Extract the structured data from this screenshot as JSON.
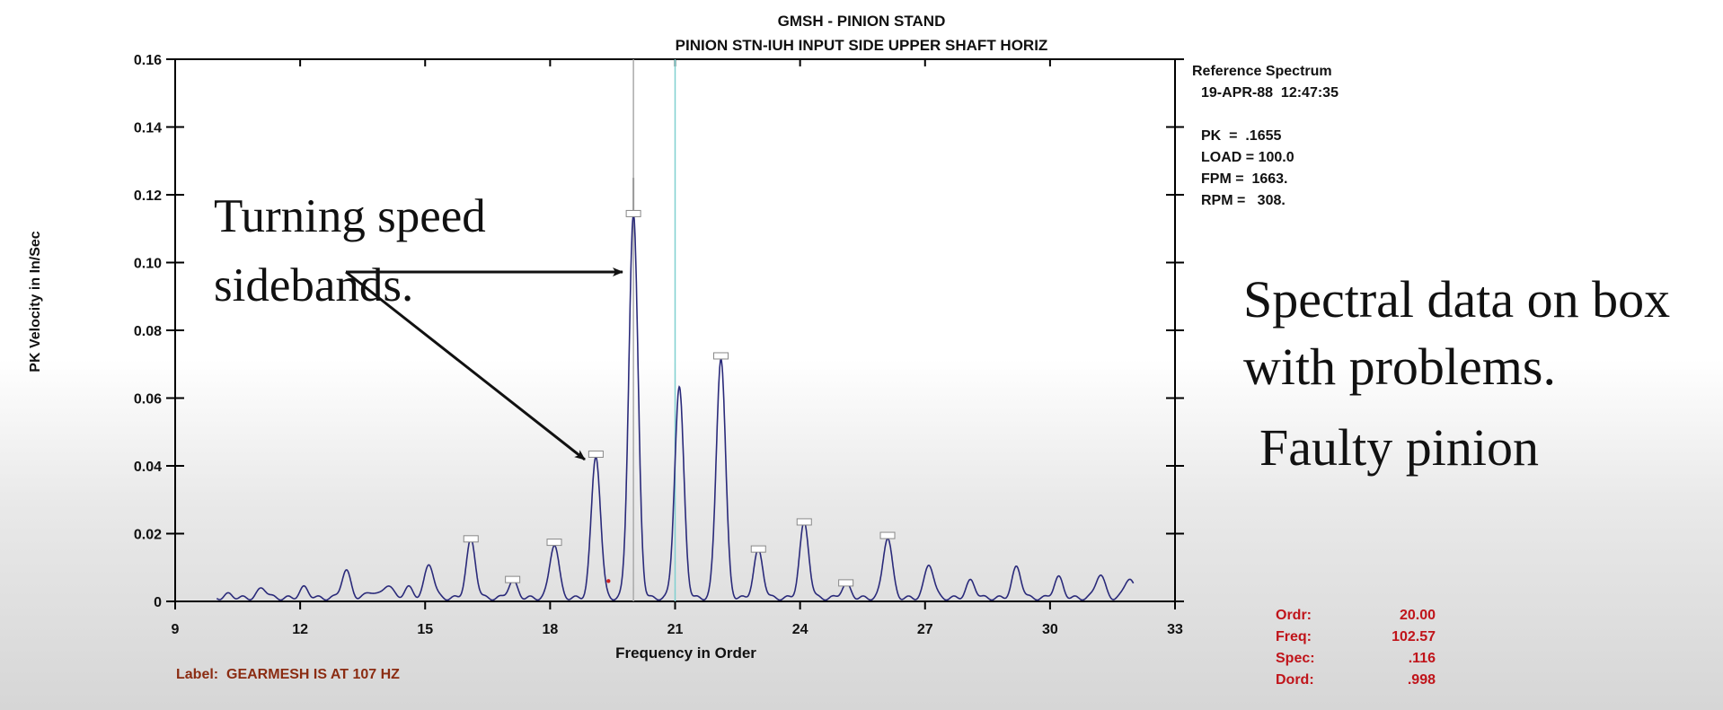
{
  "title": "GMSH - PINION STAND",
  "subtitle": "PINION STN-IUH   INPUT SIDE UPPER SHAFT HORIZ",
  "reference": {
    "heading": "Reference Spectrum",
    "datetime": "19-APR-88  12:47:35",
    "pk": "PK  =  .1655",
    "load": "LOAD = 100.0",
    "fpm": "FPM =  1663.",
    "rpm": "RPM =   308."
  },
  "annotations": {
    "turning_speed_line1": "Turning speed",
    "turning_speed_line2": "sidebands.",
    "spectral_line1": "Spectral data on box",
    "spectral_line2": "with problems.",
    "faulty": "Faulty pinion"
  },
  "label_text": "Label:  GEARMESH IS AT 107 HZ",
  "cursor": [
    {
      "key": "Ordr:",
      "value": "20.00"
    },
    {
      "key": "Freq:",
      "value": "102.57"
    },
    {
      "key": "Spec:",
      "value": ".116"
    },
    {
      "key": "Dord:",
      "value": ".998"
    }
  ],
  "colors": {
    "spectrum_line": "#2a2a7a",
    "cursor_gray": "#aaaaaa",
    "cursor_cyan": "#80d0d0",
    "label_color": "#8b2c12",
    "cursor_text": "#c0141a"
  },
  "chart_data": {
    "type": "line",
    "xlabel": "Frequency in Order",
    "ylabel": "PK Velocity in In/Sec",
    "xlim": [
      9,
      33
    ],
    "ylim": [
      0,
      0.16
    ],
    "xticks": [
      9,
      12,
      15,
      18,
      21,
      24,
      27,
      30,
      33
    ],
    "xtick_labels": [
      "9",
      "12",
      "15",
      "18",
      "21",
      "24",
      "27",
      "30",
      "33"
    ],
    "yticks": [
      0,
      0.02,
      0.04,
      0.06,
      0.08,
      0.1,
      0.12,
      0.14,
      0.16
    ],
    "ytick_labels": [
      "0",
      "0.02",
      "0.04",
      "0.06",
      "0.08",
      "0.10",
      "0.12",
      "0.14",
      "0.16"
    ],
    "x_start": 10,
    "x_end": 32,
    "baseline": 0.001,
    "peaks": [
      {
        "x": 10.3,
        "y": 0.001
      },
      {
        "x": 11.1,
        "y": 0.003
      },
      {
        "x": 12.1,
        "y": 0.003
      },
      {
        "x": 13.1,
        "y": 0.008
      },
      {
        "x": 13.7,
        "y": 0.002
      },
      {
        "x": 14.1,
        "y": 0.004
      },
      {
        "x": 14.6,
        "y": 0.003
      },
      {
        "x": 15.1,
        "y": 0.01
      },
      {
        "x": 16.1,
        "y": 0.017
      },
      {
        "x": 17.1,
        "y": 0.005
      },
      {
        "x": 18.1,
        "y": 0.016
      },
      {
        "x": 19.1,
        "y": 0.042
      },
      {
        "x": 20.0,
        "y": 0.113
      },
      {
        "x": 21.1,
        "y": 0.062
      },
      {
        "x": 22.1,
        "y": 0.071
      },
      {
        "x": 23.0,
        "y": 0.014
      },
      {
        "x": 24.1,
        "y": 0.022
      },
      {
        "x": 25.1,
        "y": 0.004
      },
      {
        "x": 26.1,
        "y": 0.018
      },
      {
        "x": 27.1,
        "y": 0.01
      },
      {
        "x": 28.1,
        "y": 0.005
      },
      {
        "x": 29.2,
        "y": 0.009
      },
      {
        "x": 30.2,
        "y": 0.006
      },
      {
        "x": 31.2,
        "y": 0.007
      },
      {
        "x": 31.9,
        "y": 0.006
      }
    ],
    "peak_markers": [
      16.1,
      17.1,
      18.1,
      19.1,
      20.0,
      22.1,
      23.0,
      24.1,
      25.1,
      26.1
    ],
    "cursor_x": 20.0,
    "harmonic_x": 21.0,
    "red_dot": {
      "x": 19.4,
      "y": 0.006
    },
    "grid": false
  }
}
